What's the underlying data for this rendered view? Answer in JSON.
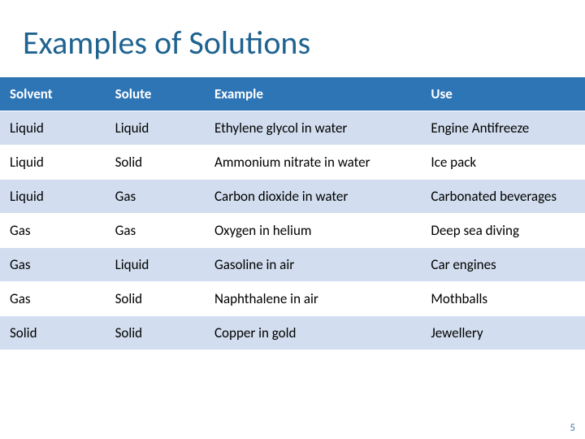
{
  "title": "Examples of Solutions",
  "title_color": "#1f6390",
  "header_bg": "#2e75b6",
  "row_alt_bg": "#d2deef",
  "row_bg": "#ffffff",
  "columns": [
    "Solvent",
    "Solute",
    "Example",
    "Use"
  ],
  "rows": [
    [
      "Liquid",
      "Liquid",
      "Ethylene glycol in water",
      "Engine Antifreeze"
    ],
    [
      "Liquid",
      "Solid",
      "Ammonium nitrate in water",
      "Ice pack"
    ],
    [
      "Liquid",
      "Gas",
      "Carbon dioxide in water",
      "Carbonated beverages"
    ],
    [
      "Gas",
      "Gas",
      "Oxygen in helium",
      "Deep sea diving"
    ],
    [
      "Gas",
      "Liquid",
      "Gasoline in air",
      "Car engines"
    ],
    [
      "Gas",
      "Solid",
      "Naphthalene in air",
      "Mothballs"
    ],
    [
      "Solid",
      "Solid",
      "Copper in gold",
      "Jewellery"
    ]
  ],
  "page_number": "5",
  "page_number_color": "#4a7ab0"
}
